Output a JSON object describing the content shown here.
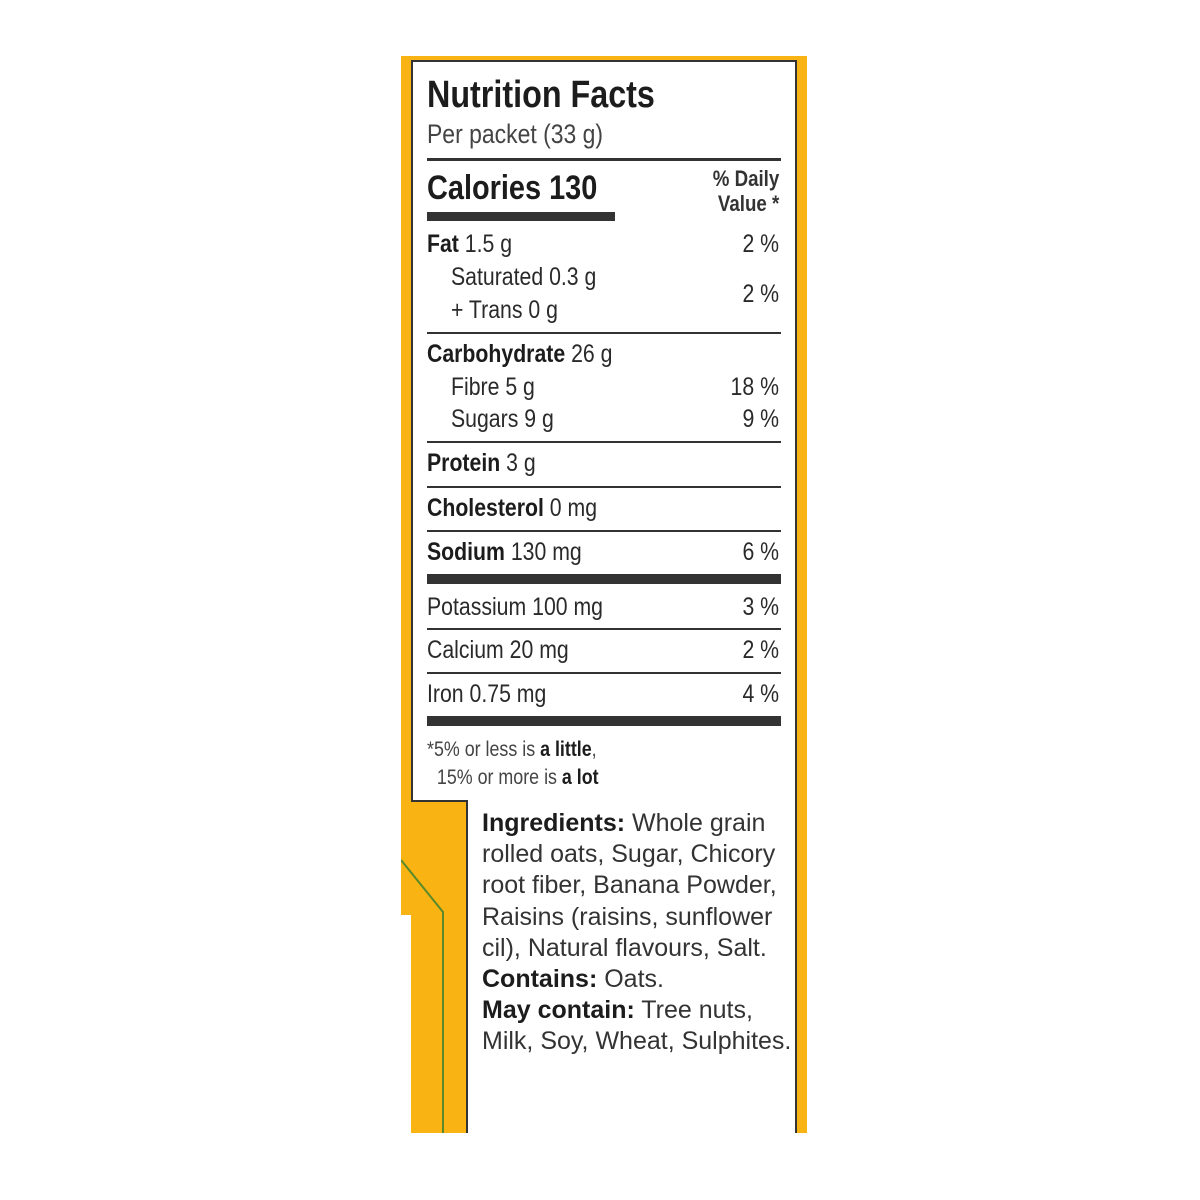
{
  "colors": {
    "background": "#f9b312",
    "border": "#333333",
    "accent_line": "#5a8a2a"
  },
  "header": {
    "title": "Nutrition Facts",
    "serving": "Per packet (33 g)"
  },
  "calories": {
    "label": "Calories",
    "value": "130"
  },
  "dv_header": {
    "line1": "% Daily",
    "line2": "Value *"
  },
  "rows": [
    {
      "name": "Fat",
      "amount": "1.5 g",
      "dv": "2 %"
    },
    {
      "name": "Saturated",
      "amount": "0.3 g"
    },
    {
      "name": "+ Trans",
      "amount": "0 g",
      "dv": "2 %"
    },
    {
      "name": "Carbohydrate",
      "amount": "26 g"
    },
    {
      "name": "Fibre",
      "amount": "5 g",
      "dv": "18 %"
    },
    {
      "name": "Sugars",
      "amount": "9 g",
      "dv": "9 %"
    },
    {
      "name": "Protein",
      "amount": "3 g"
    },
    {
      "name": "Cholesterol",
      "amount": "0 mg"
    },
    {
      "name": "Sodium",
      "amount": "130 mg",
      "dv": "6 %"
    },
    {
      "name": "Potassium",
      "amount": "100 mg",
      "dv": "3 %"
    },
    {
      "name": "Calcium",
      "amount": "20 mg",
      "dv": "2 %"
    },
    {
      "name": "Iron",
      "amount": "0.75 mg",
      "dv": "4 %"
    }
  ],
  "footnote": {
    "l1a": "*5% or less is ",
    "l1b": "a little",
    ",": ",",
    "l2a": "15% or more is ",
    "l2b": "a lot"
  },
  "ingredients": {
    "ing_label": "Ingredients:",
    "ing_text": " Whole grain rolled oats, Sugar, Chicory root fiber, Banana Powder, Raisins (raisins, sunflower cil), Natural flavours, Salt.",
    "contains_label": "Contains:",
    "contains_text": " Oats.",
    "may_label": "May contain:",
    "may_text": " Tree nuts, Milk, Soy, Wheat, Sulphites."
  }
}
